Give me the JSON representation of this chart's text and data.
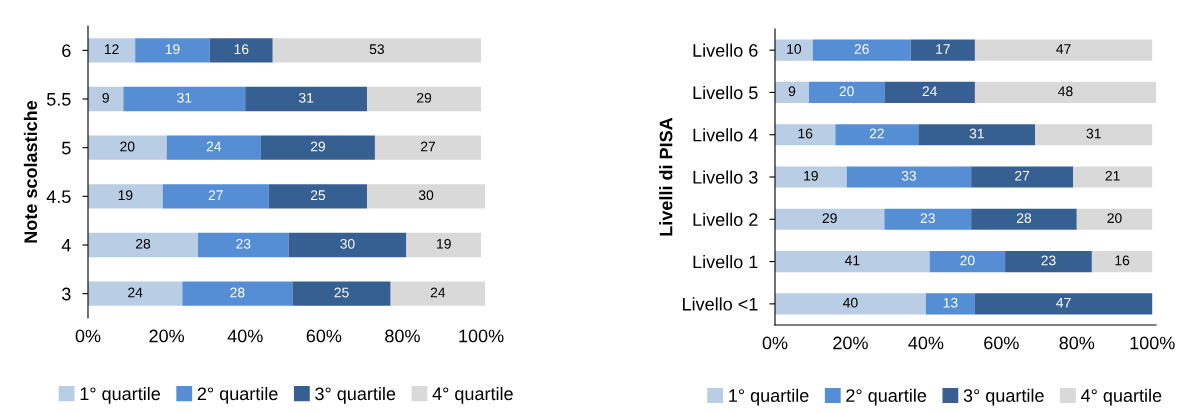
{
  "chart_data": [
    {
      "type": "bar",
      "orientation": "horizontal",
      "stacked": true,
      "ylabel": "Note scolastiche",
      "categories": [
        "6",
        "5.5",
        "5",
        "4.5",
        "4",
        "3"
      ],
      "xlim": [
        0,
        101
      ],
      "xticks": [
        {
          "value": 0,
          "label": "0%"
        },
        {
          "value": 20,
          "label": "20%"
        },
        {
          "value": 40,
          "label": "40%"
        },
        {
          "value": 60,
          "label": "60%"
        },
        {
          "value": 80,
          "label": "80%"
        },
        {
          "value": 100,
          "label": "100%"
        }
      ],
      "grid": false,
      "legend": "bottom",
      "series": [
        {
          "name": "1° quartile",
          "color": "#b9cde5",
          "values": [
            12,
            9,
            20,
            19,
            28,
            24
          ],
          "value_labels": [
            "12",
            "9",
            "20",
            "19",
            "28",
            "24"
          ]
        },
        {
          "name": "2° quartile",
          "color": "#558ed5",
          "values": [
            19,
            31,
            24,
            27,
            23,
            28
          ],
          "value_labels": [
            "19",
            "31",
            "24",
            "27",
            "23",
            "28"
          ]
        },
        {
          "name": "3° quartile",
          "color": "#376092",
          "values": [
            16,
            31,
            29,
            25,
            30,
            25
          ],
          "value_labels": [
            "16",
            "31",
            "29",
            "25",
            "30",
            "25"
          ]
        },
        {
          "name": "4° quartile",
          "color": "#d9d9d9",
          "values": [
            53,
            29,
            27,
            30,
            19,
            24
          ],
          "value_labels": [
            "53",
            "29",
            "27",
            "30",
            "19",
            "24"
          ]
        }
      ]
    },
    {
      "type": "bar",
      "orientation": "horizontal",
      "stacked": true,
      "ylabel": "Livelli di PISA",
      "categories": [
        "Livello 6",
        "Livello 5",
        "Livello 4",
        "Livello 3",
        "Livello 2",
        "Livello 1",
        "Livello <1"
      ],
      "xlim": [
        0,
        101
      ],
      "xticks": [
        {
          "value": 0,
          "label": "0%"
        },
        {
          "value": 20,
          "label": "20%"
        },
        {
          "value": 40,
          "label": "40%"
        },
        {
          "value": 60,
          "label": "60%"
        },
        {
          "value": 80,
          "label": "80%"
        },
        {
          "value": 100,
          "label": "100%"
        }
      ],
      "grid": false,
      "legend": "bottom",
      "series": [
        {
          "name": "1° quartile",
          "color": "#b9cde5",
          "values": [
            10,
            9,
            16,
            19,
            29,
            41,
            40
          ],
          "value_labels": [
            "10",
            "9",
            "16",
            "19",
            "29",
            "41",
            "40"
          ]
        },
        {
          "name": "2° quartile",
          "color": "#558ed5",
          "values": [
            26,
            20,
            22,
            33,
            23,
            20,
            13
          ],
          "value_labels": [
            "26",
            "20",
            "22",
            "33",
            "23",
            "20",
            "13"
          ]
        },
        {
          "name": "3° quartile",
          "color": "#376092",
          "values": [
            17,
            24,
            31,
            27,
            28,
            23,
            47
          ],
          "value_labels": [
            "17",
            "24",
            "31",
            "27",
            "28",
            "23",
            "47"
          ]
        },
        {
          "name": "4° quartile",
          "color": "#d9d9d9",
          "values": [
            47,
            48,
            31,
            21,
            20,
            16,
            0
          ],
          "value_labels": [
            "47",
            "48",
            "31",
            "21",
            "20",
            "16",
            null
          ]
        }
      ]
    }
  ]
}
